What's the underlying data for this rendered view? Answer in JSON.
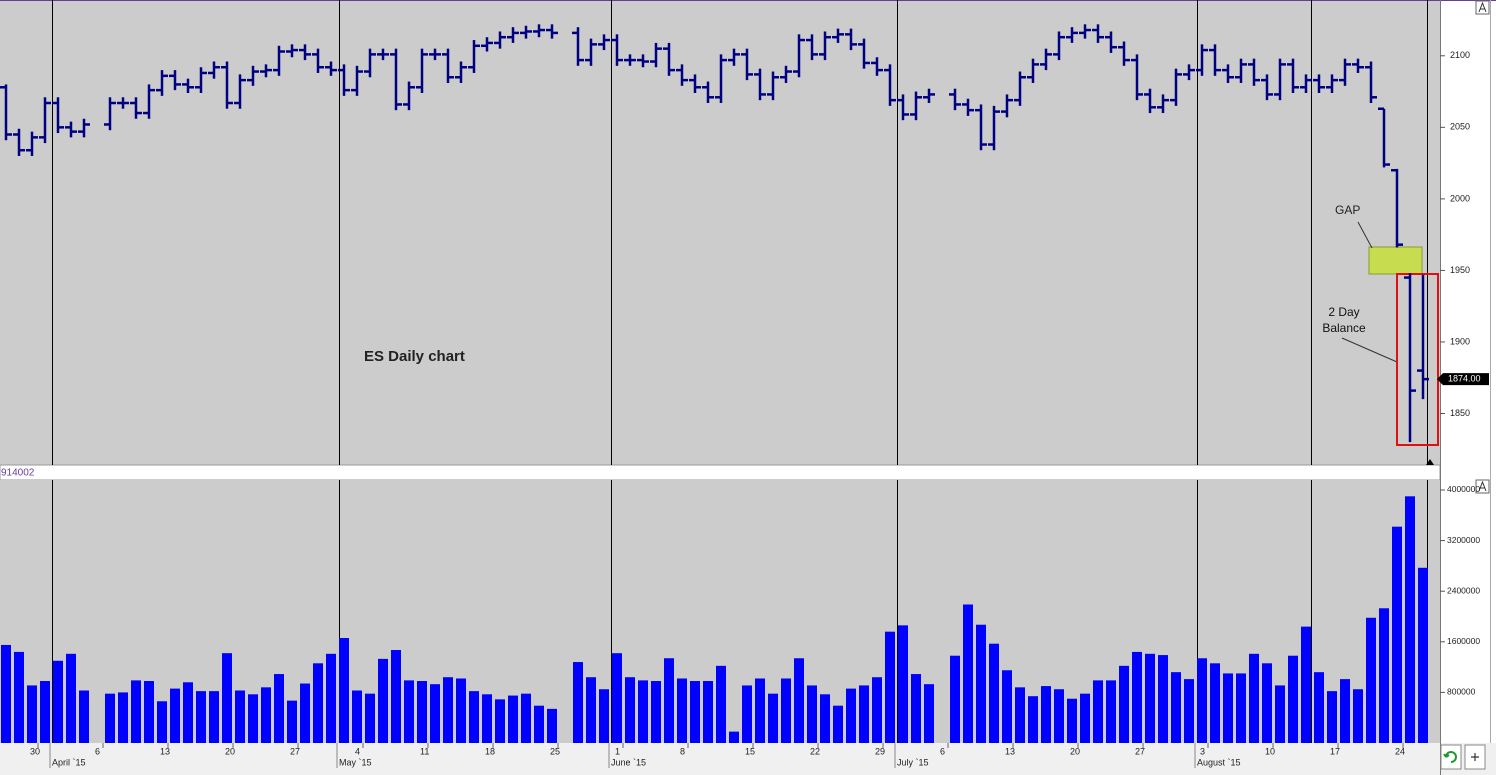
{
  "chart_data": [
    {
      "type": "ohlc",
      "title": "ES Daily chart",
      "color": "#000080",
      "open": [
        2078,
        2045,
        2034,
        2043,
        2067,
        2050,
        2047,
        null,
        2052,
        2067,
        2067,
        2060,
        2076,
        2086,
        2080,
        2078,
        2088,
        2092,
        2067,
        2083,
        2089,
        2090,
        2103,
        2104,
        2101,
        2092,
        2090,
        2076,
        2089,
        2101,
        2101,
        2066,
        2078,
        2101,
        2101,
        2085,
        2092,
        2107,
        2109,
        2113,
        2116,
        2117,
        2118,
        null,
        2116,
        2097,
        2108,
        2111,
        2097,
        2097,
        2096,
        2105,
        2090,
        2083,
        2078,
        2071,
        2097,
        2101,
        2087,
        2073,
        2085,
        2089,
        2111,
        2101,
        2113,
        2115,
        2108,
        2095,
        2090,
        2069,
        2059,
        2071,
        null,
        2073,
        2066,
        2062,
        2038,
        2061,
        2069,
        2085,
        2094,
        2101,
        2113,
        2116,
        2118,
        2113,
        2106,
        2097,
        2073,
        2064,
        2069,
        2087,
        2090,
        2104,
        2090,
        2085,
        2094,
        2083,
        2073,
        2094,
        2078,
        2083,
        2078,
        2083,
        2094,
        2092,
        2063,
        2020,
        1945,
        1880
      ],
      "high": [
        2080,
        2049,
        2047,
        2071,
        2071,
        2054,
        2056,
        null,
        2071,
        2071,
        2071,
        2080,
        2090,
        2090,
        2084,
        2092,
        2096,
        2096,
        2087,
        2093,
        2094,
        2107,
        2108,
        2108,
        2105,
        2096,
        2094,
        2093,
        2105,
        2105,
        2105,
        2082,
        2105,
        2105,
        2105,
        2096,
        2111,
        2113,
        2117,
        2120,
        2121,
        2122,
        2122,
        null,
        2120,
        2112,
        2115,
        2115,
        2101,
        2101,
        2109,
        2109,
        2094,
        2087,
        2082,
        2101,
        2105,
        2105,
        2091,
        2089,
        2093,
        2115,
        2115,
        2117,
        2119,
        2119,
        2112,
        2099,
        2094,
        2073,
        2075,
        2077,
        null,
        2077,
        2070,
        2066,
        2065,
        2073,
        2089,
        2098,
        2105,
        2117,
        2120,
        2122,
        2122,
        2117,
        2110,
        2101,
        2077,
        2073,
        2091,
        2094,
        2108,
        2108,
        2094,
        2098,
        2098,
        2087,
        2098,
        2098,
        2087,
        2087,
        2087,
        2098,
        2098,
        2096,
        2063,
        2021,
        1948,
        1947
      ],
      "low": [
        2041,
        2030,
        2030,
        2039,
        2046,
        2043,
        2043,
        null,
        2048,
        2063,
        2056,
        2056,
        2072,
        2076,
        2074,
        2074,
        2084,
        2063,
        2063,
        2079,
        2085,
        2086,
        2099,
        2097,
        2088,
        2086,
        2072,
        2072,
        2085,
        2097,
        2062,
        2062,
        2074,
        2097,
        2081,
        2081,
        2088,
        2103,
        2105,
        2109,
        2112,
        2113,
        2112,
        null,
        2093,
        2093,
        2104,
        2093,
        2093,
        2092,
        2092,
        2086,
        2079,
        2074,
        2067,
        2067,
        2093,
        2083,
        2069,
        2069,
        2081,
        2085,
        2097,
        2097,
        2109,
        2104,
        2091,
        2086,
        2065,
        2055,
        2055,
        2067,
        null,
        2062,
        2058,
        2034,
        2034,
        2057,
        2065,
        2081,
        2090,
        2097,
        2109,
        2112,
        2109,
        2102,
        2093,
        2069,
        2060,
        2060,
        2065,
        2083,
        2086,
        2086,
        2081,
        2081,
        2079,
        2069,
        2069,
        2074,
        2074,
        2074,
        2074,
        2079,
        2088,
        2067,
        2022,
        1966,
        1830,
        1860
      ],
      "close": [
        2045,
        2034,
        2043,
        2067,
        2050,
        2047,
        2052,
        null,
        2067,
        2067,
        2060,
        2076,
        2086,
        2080,
        2078,
        2088,
        2092,
        2067,
        2083,
        2089,
        2090,
        2103,
        2104,
        2101,
        2092,
        2090,
        2076,
        2089,
        2101,
        2101,
        2066,
        2078,
        2101,
        2101,
        2085,
        2092,
        2107,
        2109,
        2113,
        2116,
        2117,
        2118,
        2116,
        null,
        2097,
        2108,
        2111,
        2097,
        2097,
        2096,
        2105,
        2090,
        2083,
        2078,
        2071,
        2097,
        2101,
        2087,
        2073,
        2085,
        2089,
        2111,
        2101,
        2113,
        2115,
        2108,
        2095,
        2090,
        2069,
        2059,
        2071,
        2073,
        null,
        2066,
        2062,
        2038,
        2061,
        2069,
        2085,
        2094,
        2101,
        2113,
        2116,
        2118,
        2113,
        2106,
        2097,
        2073,
        2064,
        2069,
        2087,
        2090,
        2104,
        2090,
        2085,
        2094,
        2083,
        2073,
        2094,
        2078,
        2083,
        2078,
        2083,
        2094,
        2092,
        2071,
        2024,
        1968,
        1866,
        1874
      ],
      "ylim": [
        1814,
        2139
      ],
      "yticks": [
        1850,
        1900,
        1950,
        2000,
        2050,
        2100
      ],
      "last_price": {
        "value": 1874,
        "label": "1874.00"
      },
      "annotations": [
        "GAP",
        "2 Day Balance"
      ]
    },
    {
      "type": "bar",
      "label": "914002",
      "color": "#0000ff",
      "categories": [
        null,
        null,
        null,
        "30",
        null,
        null,
        null,
        null,
        "6",
        null,
        null,
        null,
        null,
        "13",
        null,
        null,
        null,
        null,
        "20",
        null,
        null,
        null,
        null,
        "27",
        null,
        null,
        null,
        null,
        "4",
        null,
        null,
        null,
        null,
        "11",
        null,
        null,
        null,
        null,
        "18",
        null,
        null,
        null,
        null,
        "25",
        null,
        null,
        null,
        null,
        "1",
        null,
        null,
        null,
        null,
        "8",
        null,
        null,
        null,
        null,
        "15",
        null,
        null,
        null,
        null,
        "22",
        null,
        null,
        null,
        null,
        "29",
        null,
        null,
        null,
        null,
        "6",
        null,
        null,
        null,
        null,
        "13",
        null,
        null,
        null,
        null,
        "20",
        null,
        null,
        null,
        null,
        "27",
        null,
        null,
        null,
        null,
        "3",
        null,
        null,
        null,
        null,
        "10",
        null,
        null,
        null,
        null,
        "17",
        null,
        null,
        null,
        null,
        "24",
        null
      ],
      "month_labels": [
        "April `15",
        "May `15",
        "June `15",
        "July `15",
        "August `15"
      ],
      "values": [
        1550000,
        1440000,
        910000,
        980000,
        1300000,
        1410000,
        830000,
        null,
        780000,
        800000,
        990000,
        980000,
        660000,
        860000,
        960000,
        820000,
        820000,
        1420000,
        830000,
        770000,
        880000,
        1090000,
        670000,
        940000,
        1260000,
        1410000,
        1660000,
        830000,
        780000,
        1330000,
        1470000,
        990000,
        980000,
        930000,
        1040000,
        1020000,
        820000,
        770000,
        690000,
        750000,
        780000,
        590000,
        540000,
        null,
        1280000,
        1040000,
        850000,
        1420000,
        1040000,
        990000,
        980000,
        1340000,
        1020000,
        980000,
        980000,
        1220000,
        180000,
        910000,
        1020000,
        780000,
        1020000,
        1340000,
        910000,
        770000,
        590000,
        860000,
        910000,
        1040000,
        1760000,
        1860000,
        1090000,
        930000,
        null,
        1380000,
        2190000,
        1870000,
        1570000,
        1150000,
        880000,
        740000,
        900000,
        850000,
        700000,
        780000,
        990000,
        990000,
        1220000,
        1440000,
        1410000,
        1390000,
        1120000,
        1010000,
        1340000,
        1260000,
        1100000,
        1100000,
        1410000,
        1260000,
        910000,
        1380000,
        1840000,
        1120000,
        820000,
        1010000,
        850000,
        1980000,
        2130000,
        3420000,
        3900000,
        2770000
      ],
      "ylim": [
        0,
        4158000
      ],
      "yticks": [
        800000,
        1600000,
        2400000,
        3200000,
        4000000
      ]
    }
  ]
}
